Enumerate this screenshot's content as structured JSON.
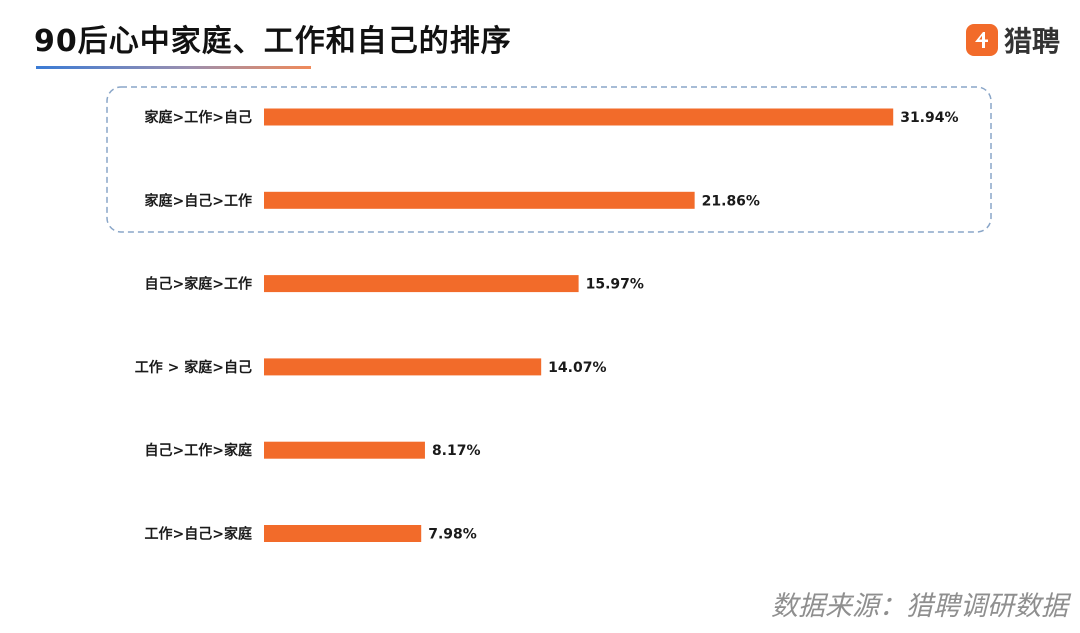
{
  "header": {
    "title": "90后心中家庭、工作和自己的排序",
    "logo_text": "猎聘"
  },
  "footer": {
    "source": "数据来源：猎聘调研数据"
  },
  "colors": {
    "bar": "#f26b2a",
    "highlight_border": "#8aa6c8",
    "logo": "#f26b2a"
  },
  "chart_data": {
    "type": "bar",
    "orientation": "horizontal",
    "title": "90后心中家庭、工作和自己的排序",
    "xlabel": "",
    "ylabel": "",
    "unit": "%",
    "categories": [
      "家庭>工作>自己",
      "家庭>自己>工作",
      "自己>家庭>工作",
      "工作 > 家庭>自己",
      "自己>工作>家庭",
      "工作>自己>家庭"
    ],
    "values": [
      31.94,
      21.86,
      15.97,
      14.07,
      8.17,
      7.98
    ],
    "value_labels": [
      "31.94%",
      "21.86%",
      "15.97%",
      "14.07%",
      "8.17%",
      "7.98%"
    ],
    "highlighted_categories": [
      "家庭>工作>自己",
      "家庭>自己>工作"
    ],
    "grid": false,
    "legend": "none"
  }
}
